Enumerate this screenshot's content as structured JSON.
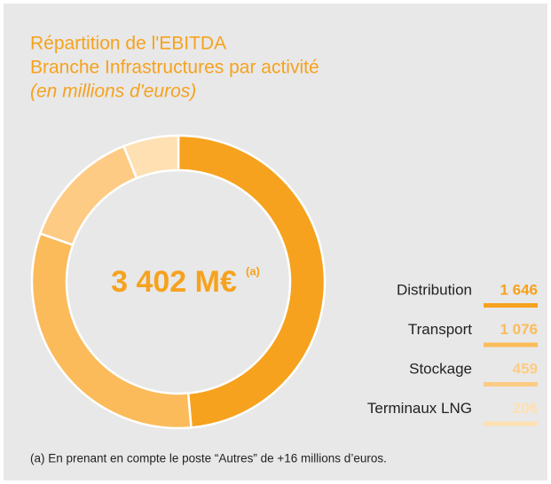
{
  "chart_data": {
    "type": "pie",
    "title": "Répartition de l'EBITDA",
    "subtitle": "Branche Infrastructures par activité",
    "unit_note": "(en millions d'euros)",
    "total_label": "3 402 M€",
    "total_note": "(a)",
    "categories": [
      "Distribution",
      "Transport",
      "Stockage",
      "Terminaux LNG"
    ],
    "values": [
      1646,
      1076,
      459,
      206
    ],
    "value_labels": [
      "1 646",
      "1 076",
      "459",
      "206"
    ],
    "colors": [
      "#f6a21e",
      "#fbbb5a",
      "#fdcb84",
      "#fee0b2"
    ],
    "footnote": "(a) En prenant en compte le poste “Autres” de +16 millions d’euros."
  }
}
